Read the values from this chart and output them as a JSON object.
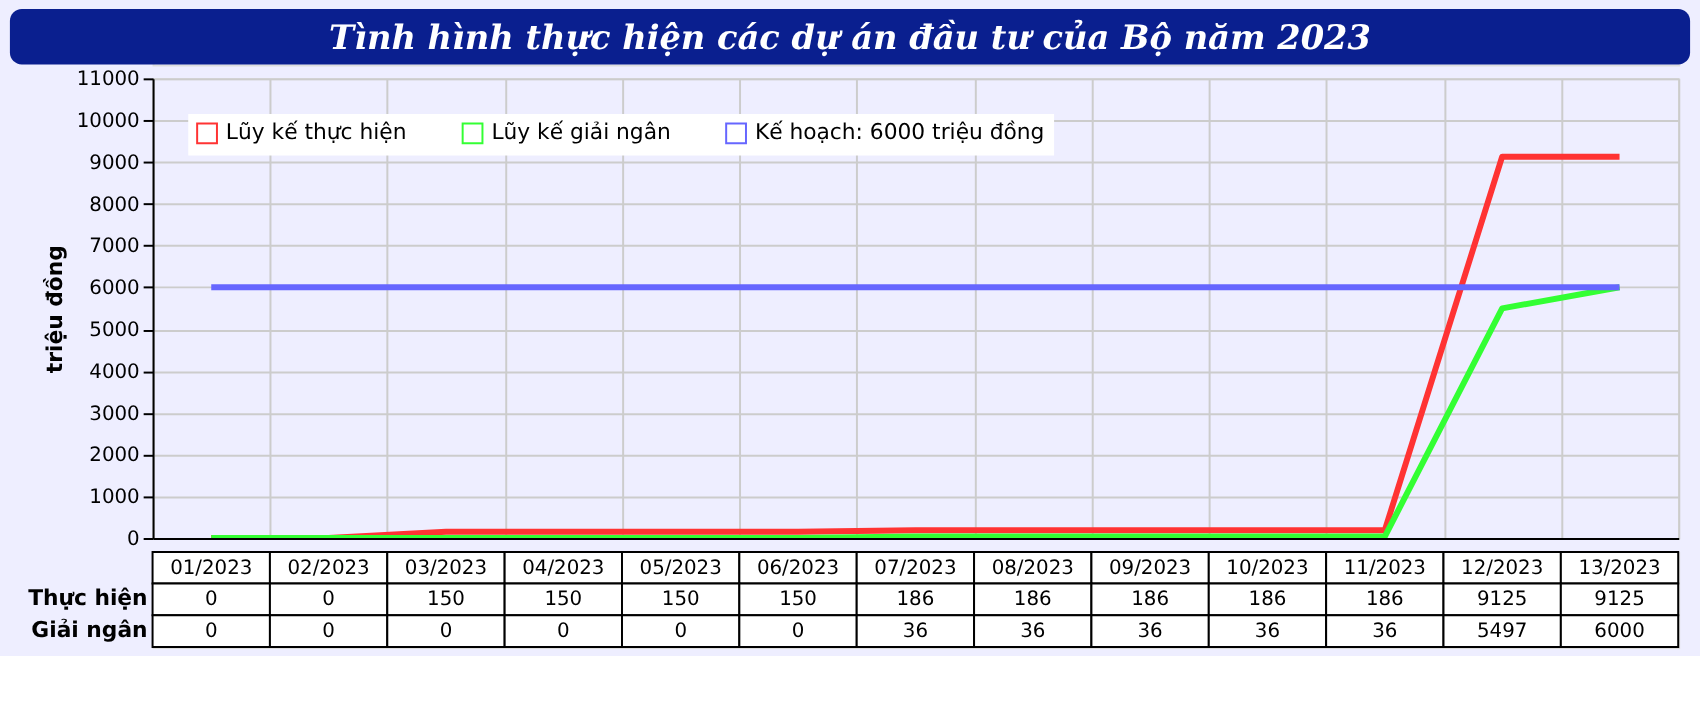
{
  "chart_data": {
    "type": "line",
    "title": "Tình hình thực hiện các dự án đầu tư của Bộ năm 2023",
    "ylabel": "triệu đồng",
    "categories": [
      "01/2023",
      "02/2023",
      "03/2023",
      "04/2023",
      "05/2023",
      "06/2023",
      "07/2023",
      "08/2023",
      "09/2023",
      "10/2023",
      "11/2023",
      "12/2023",
      "13/2023"
    ],
    "series": [
      {
        "name": "Lũy kế thực hiện",
        "color": "#ff3333",
        "values": [
          0,
          0,
          150,
          150,
          150,
          150,
          186,
          186,
          186,
          186,
          186,
          9125,
          9125
        ],
        "value_labels": [
          "0",
          "0",
          "150",
          "150",
          "150",
          "150",
          "186",
          "186",
          "186",
          "186",
          "186",
          "9125",
          "9125"
        ]
      },
      {
        "name": "Lũy kế giải ngân",
        "color": "#33ff33",
        "values": [
          0,
          0,
          0,
          0,
          0,
          0,
          36,
          36,
          36,
          36,
          36,
          5497,
          6000
        ],
        "value_labels": [
          "0",
          "0",
          "0",
          "0",
          "0",
          "0",
          "36",
          "36",
          "36",
          "36",
          "36",
          "5497",
          "6000"
        ]
      },
      {
        "name": "Kế hoạch: 6000 triệu đồng",
        "color": "#6666ff",
        "values": [
          6000,
          6000,
          6000,
          6000,
          6000,
          6000,
          6000,
          6000,
          6000,
          6000,
          6000,
          6000,
          6000
        ]
      }
    ],
    "annotations": [
      "Thực hiện",
      "Giải ngân"
    ],
    "ylim": [
      0,
      11000
    ],
    "yticks": [
      0,
      1000,
      2000,
      3000,
      4000,
      5000,
      6000,
      7000,
      8000,
      9000,
      10000,
      11000
    ],
    "grid": true,
    "legend": "top left"
  }
}
